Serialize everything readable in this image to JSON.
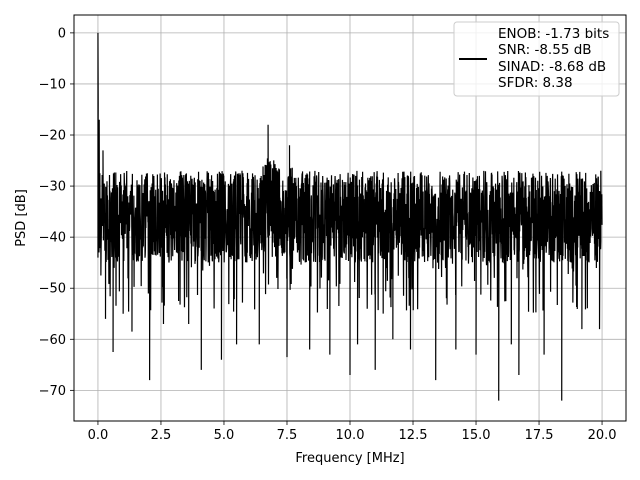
{
  "chart_data": {
    "type": "line",
    "title": "",
    "xlabel": "Frequency [MHz]",
    "ylabel": "PSD [dB]",
    "xlim": [
      -0.95,
      20.95
    ],
    "ylim": [
      -76,
      3.5
    ],
    "xticks": [
      0.0,
      2.5,
      5.0,
      7.5,
      10.0,
      12.5,
      15.0,
      17.5,
      20.0
    ],
    "xtick_labels": [
      "0.0",
      "2.5",
      "5.0",
      "7.5",
      "10.0",
      "12.5",
      "15.0",
      "17.5",
      "20.0"
    ],
    "yticks": [
      0,
      -10,
      -20,
      -30,
      -40,
      -50,
      -60,
      -70
    ],
    "ytick_labels": [
      "0",
      "−10",
      "−20",
      "−30",
      "−40",
      "−50",
      "−60",
      "−70"
    ],
    "grid": true,
    "legend": {
      "placement": "top-right",
      "entries": [
        "ENOB: -1.73 bits",
        "SNR: -8.55 dB",
        "SINAD: -8.68 dB",
        "SFDR: 8.38"
      ]
    },
    "series": [
      {
        "color": "#000000",
        "x_range": [
          0.0,
          20.0
        ],
        "noise_floor_band": [
          -45,
          -27
        ],
        "deep_nulls": [
          {
            "x": 0.3,
            "y": -56
          },
          {
            "x": 0.6,
            "y": -62.5
          },
          {
            "x": 1.0,
            "y": -55
          },
          {
            "x": 1.35,
            "y": -58.5
          },
          {
            "x": 2.05,
            "y": -68
          },
          {
            "x": 2.6,
            "y": -57
          },
          {
            "x": 3.6,
            "y": -57
          },
          {
            "x": 4.1,
            "y": -66
          },
          {
            "x": 4.9,
            "y": -64
          },
          {
            "x": 5.5,
            "y": -61
          },
          {
            "x": 6.4,
            "y": -61
          },
          {
            "x": 7.5,
            "y": -63.5
          },
          {
            "x": 8.4,
            "y": -62
          },
          {
            "x": 9.2,
            "y": -63
          },
          {
            "x": 10.0,
            "y": -67
          },
          {
            "x": 10.3,
            "y": -61
          },
          {
            "x": 11.0,
            "y": -66
          },
          {
            "x": 11.7,
            "y": -60
          },
          {
            "x": 12.4,
            "y": -62
          },
          {
            "x": 13.4,
            "y": -68
          },
          {
            "x": 14.2,
            "y": -62
          },
          {
            "x": 15.0,
            "y": -63
          },
          {
            "x": 15.9,
            "y": -72
          },
          {
            "x": 16.4,
            "y": -61
          },
          {
            "x": 16.7,
            "y": -67
          },
          {
            "x": 17.7,
            "y": -63
          },
          {
            "x": 18.4,
            "y": -72
          },
          {
            "x": 19.2,
            "y": -58
          },
          {
            "x": 19.9,
            "y": -58
          }
        ],
        "peaks": [
          {
            "x": 0.0,
            "y": 0
          },
          {
            "x": 0.05,
            "y": -17
          },
          {
            "x": 0.2,
            "y": -23
          },
          {
            "x": 6.75,
            "y": -18
          },
          {
            "x": 7.6,
            "y": -22
          },
          {
            "x": 19.95,
            "y": -27
          }
        ]
      }
    ]
  }
}
